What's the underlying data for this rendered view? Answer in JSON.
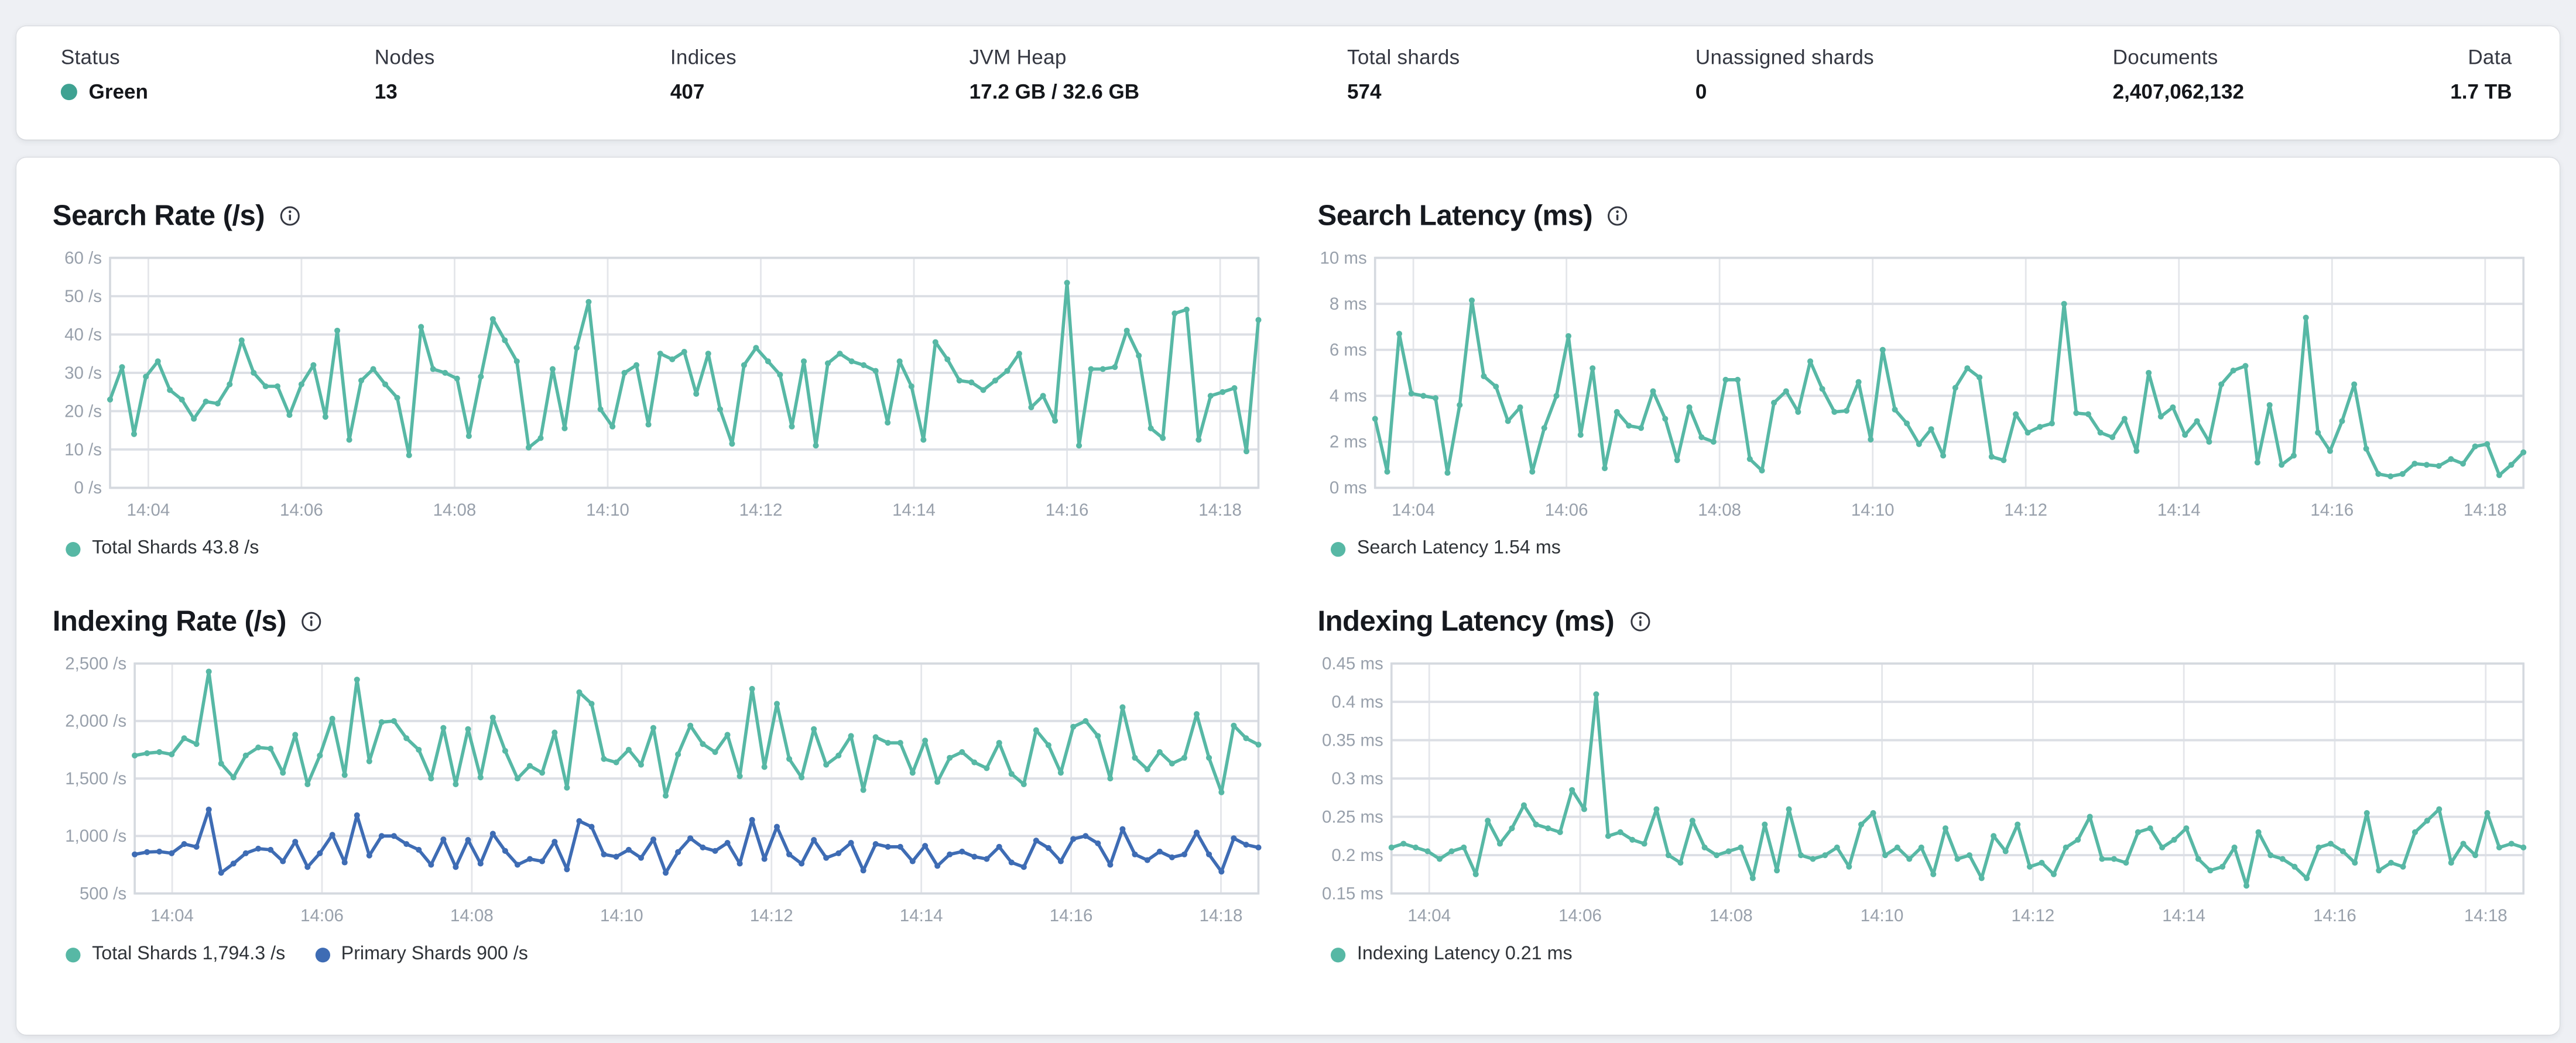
{
  "page": {
    "background": "#eef0f4"
  },
  "colors": {
    "teal_series": "#57b8a5",
    "blue_series": "#3e6cb4",
    "status_green": "#3fa292",
    "axis_text": "#98a0ab",
    "grid_h": "#dcdfe5",
    "grid_v": "#e4e6ea",
    "plot_border": "#d5d9df"
  },
  "summary": {
    "items": [
      {
        "label": "Status",
        "value": "Green",
        "status_dot_color": "#3fa292"
      },
      {
        "label": "Nodes",
        "value": "13"
      },
      {
        "label": "Indices",
        "value": "407"
      },
      {
        "label": "JVM Heap",
        "value": "17.2 GB / 32.6 GB"
      },
      {
        "label": "Total shards",
        "value": "574"
      },
      {
        "label": "Unassigned shards",
        "value": "0"
      },
      {
        "label": "Documents",
        "value": "2,407,062,132"
      },
      {
        "label": "Data",
        "value": "1.7 TB"
      }
    ]
  },
  "chart_data": [
    {
      "type": "line",
      "title": "Search Rate (/s)",
      "info_icon": "info-circle",
      "x_domain": [
        "14:03:30",
        "14:18:30"
      ],
      "x_ticks": [
        "14:04",
        "14:06",
        "14:08",
        "14:10",
        "14:12",
        "14:14",
        "14:16",
        "14:18"
      ],
      "y_ticks": [
        0,
        10,
        20,
        30,
        40,
        50,
        60
      ],
      "ylim": [
        0,
        60
      ],
      "y_unit": " /s",
      "grid": true,
      "legend_position": "bottom",
      "legend": [
        {
          "label": "Total Shards 43.8 /s",
          "color": "#57b8a5"
        }
      ],
      "series": [
        {
          "name": "Total Shards",
          "current_value": "43.8 /s",
          "color": "#57b8a5",
          "values": [
            23,
            31.5,
            14,
            29,
            33,
            25.5,
            23,
            18,
            22.5,
            22,
            27,
            38.5,
            30,
            26.5,
            26.5,
            19,
            27,
            32,
            18.5,
            41,
            12.5,
            28,
            31,
            27,
            23.5,
            8.5,
            42,
            31,
            30,
            28.5,
            13.5,
            29,
            44,
            38.5,
            33,
            10.5,
            13,
            31,
            15.5,
            36.5,
            48.5,
            20.5,
            16,
            30,
            32,
            16.5,
            35,
            33.5,
            35.5,
            24.5,
            35,
            20.5,
            11.5,
            32,
            36.5,
            33,
            29.5,
            16,
            33,
            11,
            32.5,
            35,
            33,
            32,
            30.5,
            17,
            33,
            26.5,
            12.5,
            38,
            33.5,
            28,
            27.5,
            25.5,
            28,
            30.5,
            35,
            21,
            24,
            17.5,
            53.5,
            11,
            31,
            31,
            31.5,
            41,
            34.5,
            15.5,
            13,
            45.5,
            46.5,
            12.5,
            24,
            25,
            26,
            9.5,
            43.8
          ]
        }
      ]
    },
    {
      "type": "line",
      "title": "Search Latency (ms)",
      "info_icon": "info-circle",
      "x_domain": [
        "14:03:30",
        "14:18:30"
      ],
      "x_ticks": [
        "14:04",
        "14:06",
        "14:08",
        "14:10",
        "14:12",
        "14:14",
        "14:16",
        "14:18"
      ],
      "y_ticks": [
        0,
        2,
        4,
        6,
        8,
        10
      ],
      "ylim": [
        0,
        10
      ],
      "y_unit": " ms",
      "grid": true,
      "legend_position": "bottom",
      "legend": [
        {
          "label": "Search Latency 1.54 ms",
          "color": "#57b8a5"
        }
      ],
      "series": [
        {
          "name": "Search Latency",
          "current_value": "1.54 ms",
          "color": "#57b8a5",
          "values": [
            3.0,
            0.7,
            6.7,
            4.1,
            4.0,
            3.9,
            0.65,
            3.6,
            8.15,
            4.85,
            4.4,
            2.9,
            3.5,
            0.7,
            2.6,
            4.0,
            6.6,
            2.3,
            5.2,
            0.85,
            3.3,
            2.7,
            2.6,
            4.2,
            3.0,
            1.2,
            3.5,
            2.2,
            2.0,
            4.7,
            4.7,
            1.25,
            0.75,
            3.7,
            4.2,
            3.3,
            5.5,
            4.3,
            3.3,
            3.35,
            4.6,
            2.1,
            6.0,
            3.4,
            2.8,
            1.9,
            2.55,
            1.4,
            4.35,
            5.2,
            4.8,
            1.35,
            1.2,
            3.2,
            2.4,
            2.65,
            2.8,
            8.0,
            3.25,
            3.2,
            2.4,
            2.2,
            3.0,
            1.6,
            5.0,
            3.1,
            3.5,
            2.3,
            2.9,
            2.0,
            4.5,
            5.1,
            5.3,
            1.1,
            3.6,
            1.0,
            1.4,
            7.4,
            2.4,
            1.6,
            2.9,
            4.5,
            1.7,
            0.6,
            0.5,
            0.6,
            1.05,
            1.0,
            0.95,
            1.25,
            1.05,
            1.8,
            1.9,
            0.55,
            1.0,
            1.54
          ]
        }
      ]
    },
    {
      "type": "line",
      "title": "Indexing Rate (/s)",
      "info_icon": "info-circle",
      "x_domain": [
        "14:03:30",
        "14:18:30"
      ],
      "x_ticks": [
        "14:04",
        "14:06",
        "14:08",
        "14:10",
        "14:12",
        "14:14",
        "14:16",
        "14:18"
      ],
      "y_ticks": [
        500,
        1000,
        1500,
        2000,
        2500
      ],
      "ylim": [
        500,
        2500
      ],
      "y_unit": " /s",
      "grid": true,
      "legend_position": "bottom",
      "legend": [
        {
          "label": "Total Shards 1,794.3 /s",
          "color": "#57b8a5"
        },
        {
          "label": "Primary Shards 900 /s",
          "color": "#3e6cb4"
        }
      ],
      "series": [
        {
          "name": "Total Shards",
          "current_value": "1,794.3 /s",
          "color": "#57b8a5",
          "values": [
            1700,
            1720,
            1730,
            1710,
            1850,
            1800,
            2430,
            1630,
            1510,
            1700,
            1770,
            1760,
            1550,
            1880,
            1450,
            1700,
            2020,
            1530,
            2360,
            1650,
            1990,
            2000,
            1850,
            1750,
            1500,
            1940,
            1450,
            1930,
            1510,
            2030,
            1740,
            1500,
            1610,
            1550,
            1900,
            1420,
            2250,
            2150,
            1670,
            1640,
            1750,
            1620,
            1940,
            1350,
            1710,
            1960,
            1800,
            1730,
            1880,
            1520,
            2280,
            1600,
            2150,
            1670,
            1510,
            1930,
            1620,
            1700,
            1870,
            1400,
            1860,
            1810,
            1810,
            1550,
            1830,
            1470,
            1680,
            1730,
            1640,
            1590,
            1810,
            1540,
            1450,
            1920,
            1790,
            1550,
            1950,
            2000,
            1870,
            1500,
            2120,
            1680,
            1580,
            1730,
            1630,
            1680,
            2060,
            1680,
            1380,
            1960,
            1850,
            1794.3
          ]
        },
        {
          "name": "Primary Shards",
          "current_value": "900 /s",
          "color": "#3e6cb4",
          "values": [
            840,
            860,
            865,
            850,
            930,
            905,
            1230,
            680,
            760,
            850,
            890,
            880,
            780,
            950,
            730,
            850,
            1010,
            770,
            1180,
            830,
            1000,
            1000,
            930,
            880,
            750,
            970,
            730,
            965,
            760,
            1020,
            870,
            750,
            800,
            780,
            950,
            710,
            1130,
            1080,
            840,
            820,
            880,
            810,
            970,
            680,
            860,
            980,
            900,
            870,
            940,
            760,
            1140,
            800,
            1080,
            840,
            760,
            965,
            810,
            850,
            940,
            700,
            930,
            905,
            905,
            780,
            915,
            740,
            840,
            865,
            820,
            800,
            905,
            770,
            730,
            960,
            895,
            780,
            975,
            1000,
            935,
            750,
            1060,
            840,
            790,
            865,
            815,
            840,
            1030,
            840,
            690,
            980,
            925,
            900
          ]
        }
      ]
    },
    {
      "type": "line",
      "title": "Indexing Latency (ms)",
      "info_icon": "info-circle",
      "x_domain": [
        "14:03:30",
        "14:18:30"
      ],
      "x_ticks": [
        "14:04",
        "14:06",
        "14:08",
        "14:10",
        "14:12",
        "14:14",
        "14:16",
        "14:18"
      ],
      "y_ticks": [
        0.15,
        0.2,
        0.25,
        0.3,
        0.35,
        0.4,
        0.45
      ],
      "ylim": [
        0.15,
        0.45
      ],
      "y_unit": " ms",
      "grid": true,
      "legend_position": "bottom",
      "legend": [
        {
          "label": "Indexing Latency 0.21 ms",
          "color": "#57b8a5"
        }
      ],
      "series": [
        {
          "name": "Indexing Latency",
          "current_value": "0.21 ms",
          "color": "#57b8a5",
          "values": [
            0.21,
            0.215,
            0.21,
            0.205,
            0.195,
            0.205,
            0.21,
            0.175,
            0.245,
            0.215,
            0.235,
            0.265,
            0.24,
            0.235,
            0.23,
            0.285,
            0.26,
            0.41,
            0.225,
            0.23,
            0.22,
            0.215,
            0.26,
            0.2,
            0.19,
            0.245,
            0.21,
            0.2,
            0.205,
            0.21,
            0.17,
            0.24,
            0.18,
            0.26,
            0.2,
            0.195,
            0.2,
            0.21,
            0.185,
            0.24,
            0.255,
            0.2,
            0.21,
            0.195,
            0.21,
            0.175,
            0.235,
            0.195,
            0.2,
            0.17,
            0.225,
            0.205,
            0.24,
            0.185,
            0.19,
            0.175,
            0.21,
            0.22,
            0.25,
            0.195,
            0.195,
            0.19,
            0.23,
            0.235,
            0.21,
            0.22,
            0.235,
            0.195,
            0.18,
            0.185,
            0.21,
            0.16,
            0.23,
            0.2,
            0.195,
            0.185,
            0.17,
            0.21,
            0.215,
            0.205,
            0.19,
            0.255,
            0.18,
            0.19,
            0.185,
            0.23,
            0.245,
            0.26,
            0.19,
            0.215,
            0.2,
            0.255,
            0.21,
            0.215,
            0.21
          ]
        }
      ]
    }
  ]
}
